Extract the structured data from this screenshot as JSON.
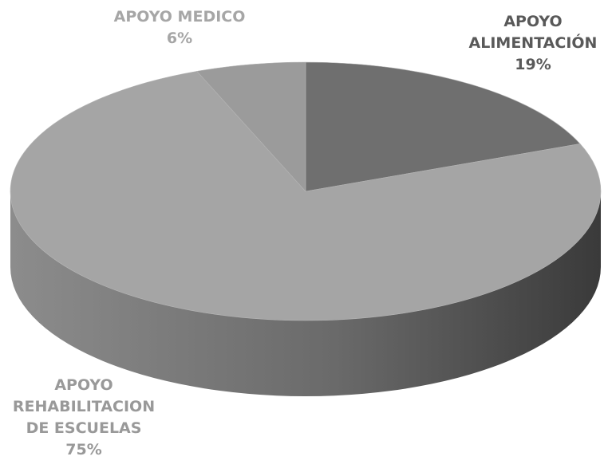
{
  "chart_data": {
    "type": "pie",
    "categories": [
      "APOYO ALIMENTACIÓN",
      "APOYO REHABILITACION DE ESCUELAS",
      "APOYO MEDICO"
    ],
    "values": [
      19,
      75,
      6
    ],
    "value_labels": [
      "19%",
      "75%",
      "6%"
    ],
    "colors": [
      "#6f6f6f",
      "#a5a5a5",
      "#9b9b9b"
    ]
  }
}
